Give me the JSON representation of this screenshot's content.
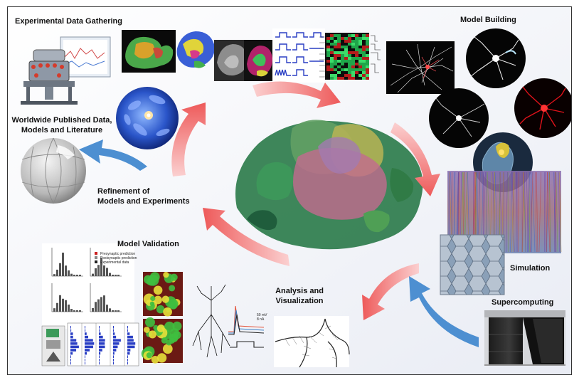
{
  "labels": {
    "experimental_data_gathering": "Experimental Data Gathering",
    "model_building": "Model Building",
    "worldwide_published_line1": "Worldwide Published Data,",
    "worldwide_published_line2": "Models and Literature",
    "refinement_line1": "Refinement of",
    "refinement_line2": "Models and Experiments",
    "model_validation": "Model Validation",
    "simulation": "Simulation",
    "analysis_line1": "Analysis and",
    "analysis_line2": "Visualization",
    "supercomputing": "Supercomputing"
  },
  "colors": {
    "red_arrow": "#f26b6b",
    "blue_arrow": "#4d8fd1",
    "brain_green": "#3f9a5a",
    "brain_pink": "#c77a9a",
    "brain_yellow": "#b7b34a"
  },
  "icons": [
    "microscope-rig-icon",
    "brain-slices-icon",
    "gene-expression-heatmap-icon",
    "neuron-network-icon",
    "neuron-circle-icon",
    "cortical-column-icon",
    "supercomputer-icon",
    "globe-puzzle-icon",
    "molecule-sphere-icon",
    "histogram-plots-icon",
    "mesh-visualization-icon"
  ]
}
